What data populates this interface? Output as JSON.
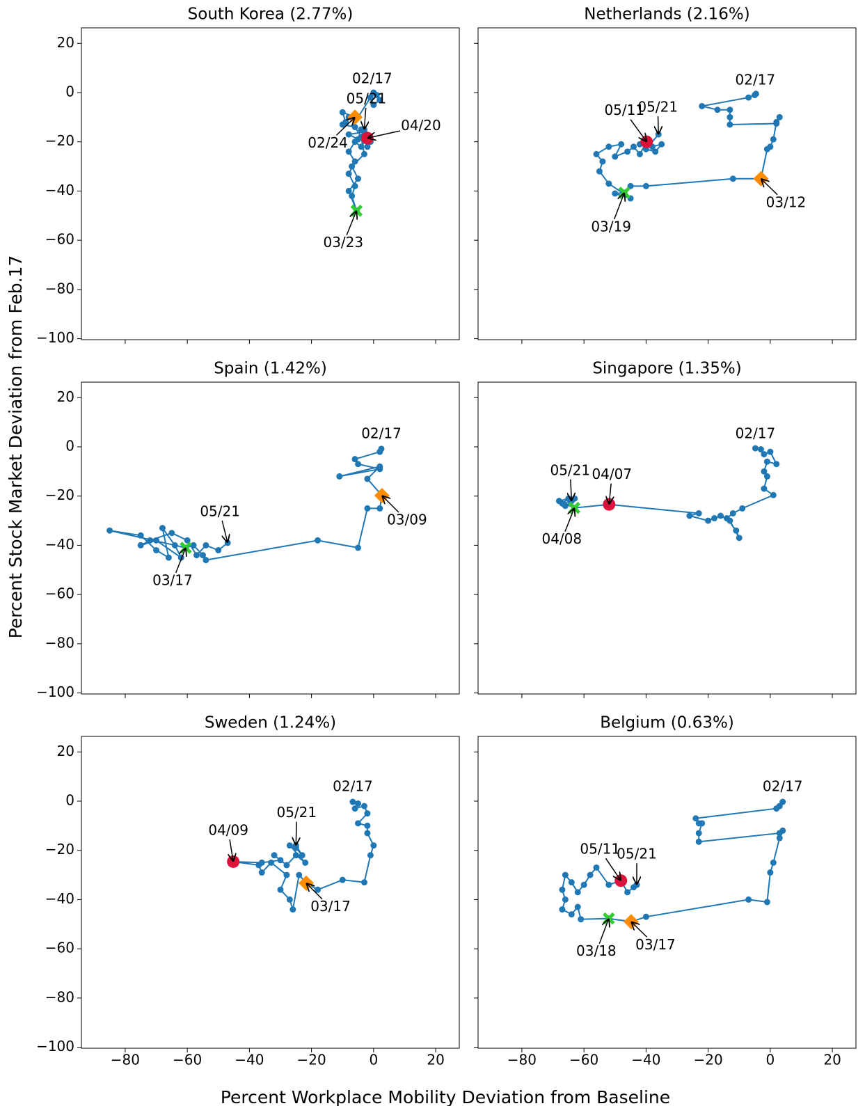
{
  "xlabel": "Percent Workplace Mobility Deviation from Baseline",
  "ylabel": "Percent Stock Market Deviation from Feb.17",
  "xlim": [
    -94.1,
    27.6
  ],
  "ylim": [
    -100.4,
    26.3
  ],
  "xticks": [
    {
      "value": -80,
      "label": "−80"
    },
    {
      "value": -60,
      "label": "−60"
    },
    {
      "value": -40,
      "label": "−40"
    },
    {
      "value": -20,
      "label": "−20"
    },
    0,
    20
  ],
  "yticks": [
    {
      "value": -100,
      "label": "−100"
    },
    {
      "value": -80,
      "label": "−80"
    },
    {
      "value": -60,
      "label": "−60"
    },
    {
      "value": -40,
      "label": "−40"
    },
    {
      "value": -20,
      "label": "−20"
    },
    0,
    20
  ],
  "chart_data": [
    {
      "type": "line",
      "title": "South Korea (2.77%)",
      "color": "#1f77b4",
      "x": [
        0,
        1,
        2,
        0,
        -1,
        -5,
        -6,
        -10,
        -9,
        -8,
        -10,
        -6,
        -4,
        -3,
        -7,
        -5,
        -8,
        -5.5,
        -7,
        -6,
        -8,
        -6,
        -8,
        -6,
        -4,
        -2,
        -5,
        -8,
        -3,
        -1,
        -2,
        -4,
        -3
      ],
      "values": [
        0,
        -1,
        -3,
        -5,
        -2,
        -10,
        -10,
        -8,
        -12,
        -10,
        -13,
        -14,
        -18,
        -25,
        -30,
        -35,
        -40,
        -48,
        -42,
        -38,
        -33,
        -28,
        -24,
        -20,
        -22,
        -18.5,
        -19,
        -17,
        -16,
        -20,
        -22,
        -15,
        -15
      ],
      "markers": [
        {
          "shape": "diamond",
          "color": "#ff8c00",
          "x": -6,
          "y": -10
        },
        {
          "shape": "circle",
          "color": "#dc143c",
          "x": -2,
          "y": -18.5
        },
        {
          "shape": "x",
          "color": "#32cd32",
          "x": -5.5,
          "y": -48
        }
      ],
      "annotations": [
        {
          "text": "02/17",
          "x": 0,
          "y": 0
        },
        {
          "text": "05/21",
          "x": -3,
          "y": -15
        },
        {
          "text": "04/20",
          "x": -2,
          "y": -18.5
        },
        {
          "text": "02/24",
          "x": -6,
          "y": -10
        },
        {
          "text": "03/23",
          "x": -5.5,
          "y": -48
        }
      ]
    },
    {
      "type": "line",
      "title": "Netherlands (2.16%)",
      "color": "#1f77b4",
      "x": [
        -4.6,
        -5,
        -7,
        -22,
        -17,
        -13,
        -13,
        -13,
        2,
        3,
        2,
        1,
        0,
        -1,
        -3,
        -12,
        -40,
        -45,
        -47,
        -50,
        -45,
        -52,
        -55,
        -54,
        -56,
        -52,
        -48,
        -50,
        -46,
        -44,
        -42,
        -39.8,
        -42,
        -38,
        -35,
        -37,
        -40,
        -36
      ],
      "values": [
        -0.5,
        -1,
        -2,
        -5.5,
        -7,
        -7,
        -10,
        -13,
        -12.6,
        -10,
        -12,
        -19,
        -22,
        -23,
        -35,
        -35,
        -38,
        -38,
        -40.7,
        -41,
        -43,
        -37,
        -32,
        -28,
        -25,
        -22,
        -21,
        -26,
        -24,
        -22,
        -25,
        -20,
        -21,
        -22,
        -21,
        -24,
        -23,
        -17
      ],
      "markers": [
        {
          "shape": "diamond",
          "color": "#ff8c00",
          "x": -3,
          "y": -35
        },
        {
          "shape": "circle",
          "color": "#dc143c",
          "x": -39.8,
          "y": -20
        },
        {
          "shape": "x",
          "color": "#32cd32",
          "x": -47,
          "y": -40.7
        }
      ],
      "annotations": [
        {
          "text": "02/17",
          "x": -4.6,
          "y": -0.5
        },
        {
          "text": "05/21",
          "x": -36,
          "y": -17
        },
        {
          "text": "05/11",
          "x": -39.8,
          "y": -20
        },
        {
          "text": "03/12",
          "x": -3,
          "y": -35
        },
        {
          "text": "03/19",
          "x": -47,
          "y": -40.7
        }
      ]
    },
    {
      "type": "line",
      "title": "Spain (1.42%)",
      "color": "#1f77b4",
      "x": [
        2.5,
        2,
        -6,
        -5,
        2,
        -11,
        2,
        -2,
        2.7,
        2,
        -2,
        -5,
        -18,
        -54,
        -55,
        -58,
        -60.5,
        -85,
        -75,
        -70,
        -66,
        -68,
        -64,
        -62,
        -70,
        -75,
        -72,
        -65,
        -60,
        -57,
        -54,
        -50,
        -47
      ],
      "values": [
        -0.8,
        -2,
        -5,
        -7,
        -9,
        -12,
        -8,
        -13,
        -19.8,
        -25,
        -25,
        -41,
        -38,
        -46,
        -44,
        -40,
        -41,
        -34,
        -36,
        -42,
        -45,
        -33,
        -40,
        -45,
        -38,
        -40,
        -38,
        -35,
        -38,
        -44,
        -40,
        -42,
        -39
      ],
      "markers": [
        {
          "shape": "diamond",
          "color": "#ff8c00",
          "x": 2.7,
          "y": -19.8
        },
        {
          "shape": "x",
          "color": "#32cd32",
          "x": -60.5,
          "y": -41
        }
      ],
      "annotations": [
        {
          "text": "02/17",
          "x": 2.5,
          "y": -0.8
        },
        {
          "text": "03/09",
          "x": 2.7,
          "y": -19.8
        },
        {
          "text": "05/21",
          "x": -47,
          "y": -39
        },
        {
          "text": "03/17",
          "x": -60.5,
          "y": -41
        }
      ]
    },
    {
      "type": "line",
      "title": "Singapore (1.35%)",
      "color": "#1f77b4",
      "x": [
        -4.8,
        -3,
        -2,
        0,
        2,
        -1,
        -2,
        -1,
        -2,
        1,
        -9,
        -12,
        -14,
        -11,
        -10,
        -13,
        -16,
        -18,
        -20,
        -26,
        -23,
        -51.9,
        -63.1,
        -68,
        -65,
        -67,
        -64,
        -66,
        -63,
        -64
      ],
      "values": [
        -0.6,
        -1,
        -3,
        -2,
        -7,
        -6,
        -10,
        -12,
        -17,
        -19.6,
        -25,
        -27,
        -29,
        -34,
        -37,
        -30,
        -28,
        -29,
        -30,
        -28,
        -27,
        -23.4,
        -24.8,
        -22,
        -21,
        -23,
        -22,
        -24,
        -21,
        -22
      ],
      "markers": [
        {
          "shape": "circle",
          "color": "#dc143c",
          "x": -51.9,
          "y": -23.4
        },
        {
          "shape": "x",
          "color": "#32cd32",
          "x": -63.1,
          "y": -24.8
        }
      ],
      "annotations": [
        {
          "text": "02/17",
          "x": -4.8,
          "y": -0.6
        },
        {
          "text": "05/21",
          "x": -64,
          "y": -22
        },
        {
          "text": "04/07",
          "x": -51.9,
          "y": -23.4
        },
        {
          "text": "04/08",
          "x": -63.1,
          "y": -24.8
        }
      ]
    },
    {
      "type": "line",
      "title": "Sweden (1.24%)",
      "color": "#1f77b4",
      "x": [
        -6.7,
        -5,
        -6,
        -3,
        -2,
        -5,
        -2,
        -2,
        0,
        -1,
        -3,
        -10,
        -18,
        -21.7,
        -24,
        -26,
        -27,
        -30,
        -28,
        -33,
        -36,
        -37,
        -45.2,
        -36,
        -30,
        -32,
        -28,
        -25,
        -22,
        -27,
        -25,
        -23,
        -25
      ],
      "values": [
        -0.3,
        -1,
        -3,
        -2,
        -5,
        -9,
        -10,
        -13,
        -18,
        -22,
        -33,
        -32,
        -36,
        -33.3,
        -30,
        -44,
        -40,
        -36,
        -30,
        -25,
        -29,
        -26,
        -24.6,
        -25,
        -24,
        -22,
        -26,
        -22,
        -25,
        -18,
        -19,
        -22,
        -18
      ],
      "markers": [
        {
          "shape": "diamond",
          "color": "#ff8c00",
          "x": -21.7,
          "y": -33.3
        },
        {
          "shape": "circle",
          "color": "#dc143c",
          "x": -45.2,
          "y": -24.6
        }
      ],
      "annotations": [
        {
          "text": "02/17",
          "x": -6.7,
          "y": -0.3
        },
        {
          "text": "05/21",
          "x": -25,
          "y": -18
        },
        {
          "text": "04/09",
          "x": -45.2,
          "y": -24.6
        },
        {
          "text": "03/17",
          "x": -21.7,
          "y": -33.3
        }
      ]
    },
    {
      "type": "line",
      "title": "Belgium (0.63%)",
      "color": "#1f77b4",
      "x": [
        4,
        3,
        2,
        -24,
        -23,
        -22,
        -23,
        -23,
        3,
        4,
        3,
        1,
        0,
        -1,
        -7,
        -40,
        -44.8,
        -52,
        -61,
        -62,
        -64,
        -67,
        -66,
        -67,
        -66,
        -64,
        -62,
        -60,
        -58,
        -56,
        -52,
        -48.1,
        -46,
        -44,
        -43
      ],
      "values": [
        -0.3,
        -2,
        -3,
        -7,
        -9,
        -9,
        -13,
        -16.5,
        -13,
        -12,
        -15,
        -25,
        -29,
        -41,
        -40,
        -47,
        -49,
        -47.7,
        -48,
        -43,
        -46,
        -44,
        -40,
        -36,
        -30,
        -33,
        -37,
        -34,
        -30,
        -27,
        -34,
        -32.3,
        -37,
        -35,
        -34
      ],
      "markers": [
        {
          "shape": "diamond",
          "color": "#ff8c00",
          "x": -44.8,
          "y": -49
        },
        {
          "shape": "circle",
          "color": "#dc143c",
          "x": -48.1,
          "y": -32.3
        },
        {
          "shape": "x",
          "color": "#32cd32",
          "x": -52,
          "y": -47.7
        }
      ],
      "annotations": [
        {
          "text": "02/17",
          "x": 4,
          "y": -0.3
        },
        {
          "text": "05/11",
          "x": -48.1,
          "y": -32.3
        },
        {
          "text": "05/21",
          "x": -43,
          "y": -34
        },
        {
          "text": "03/18",
          "x": -52,
          "y": -47.7
        },
        {
          "text": "03/17",
          "x": -44.8,
          "y": -49
        }
      ]
    }
  ]
}
